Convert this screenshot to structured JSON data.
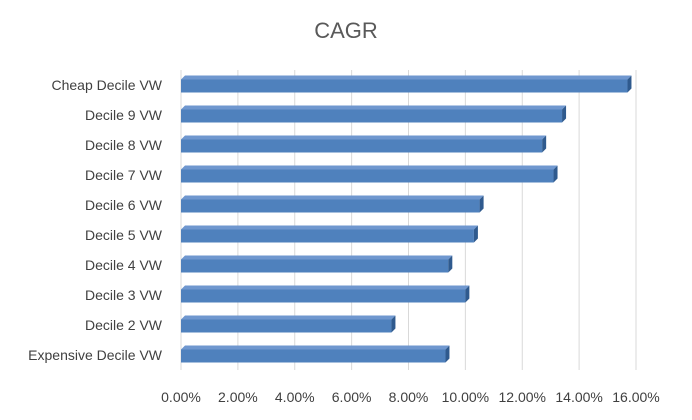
{
  "chart_data": {
    "type": "bar",
    "orientation": "horizontal",
    "title": "CAGR",
    "categories": [
      "Cheap Decile VW",
      "Decile 9 VW",
      "Decile 8 VW",
      "Decile 7 VW",
      "Decile 6 VW",
      "Decile 5 VW",
      "Decile 4 VW",
      "Decile 3 VW",
      "Decile 2 VW",
      "Expensive Decile VW"
    ],
    "values": [
      0.157,
      0.134,
      0.127,
      0.131,
      0.105,
      0.103,
      0.094,
      0.1,
      0.074,
      0.093
    ],
    "xlim": [
      0,
      0.16
    ],
    "x_ticks": [
      "0.00%",
      "2.00%",
      "4.00%",
      "6.00%",
      "8.00%",
      "10.00%",
      "12.00%",
      "14.00%",
      "16.00%"
    ],
    "value_format": "percent",
    "grid": true,
    "legend": "none",
    "colors": {
      "bar_face": "#4f81bd",
      "bar_top": "#6f97cf",
      "bar_side": "#2f5a8e",
      "grid": "#d9d9d9",
      "text": "#404040",
      "title": "#595959"
    }
  }
}
